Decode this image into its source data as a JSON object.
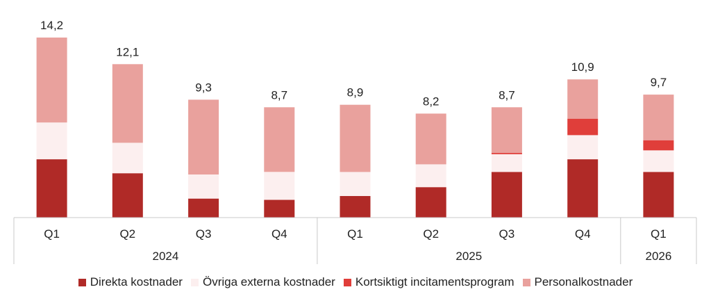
{
  "chart_data": {
    "type": "bar",
    "stacked": true,
    "categories": [
      "Q1",
      "Q2",
      "Q3",
      "Q4",
      "Q1",
      "Q2",
      "Q3",
      "Q4",
      "Q1"
    ],
    "groups": [
      {
        "label": "2024",
        "count": 4
      },
      {
        "label": "2025",
        "count": 4
      },
      {
        "label": "2026",
        "count": 1
      }
    ],
    "totals": [
      14.2,
      12.1,
      9.3,
      8.7,
      8.9,
      8.2,
      8.7,
      10.9,
      9.7
    ],
    "total_labels": [
      "14,2",
      "12,1",
      "9,3",
      "8,7",
      "8,9",
      "8,2",
      "8,7",
      "10,9",
      "9,7"
    ],
    "series": [
      {
        "name": "Direkta kostnader",
        "color": "#b02a27",
        "values": [
          4.6,
          3.5,
          1.5,
          1.4,
          1.7,
          2.4,
          3.6,
          4.6,
          3.6
        ]
      },
      {
        "name": "Övriga externa kostnader",
        "color": "#fcefef",
        "values": [
          2.9,
          2.4,
          1.9,
          2.2,
          1.9,
          1.8,
          1.4,
          1.9,
          1.7
        ]
      },
      {
        "name": "Kortsiktigt incitamentsprogram",
        "color": "#e03e3a",
        "values": [
          0,
          0,
          0,
          0,
          0,
          0,
          0.1,
          1.3,
          0.8
        ]
      },
      {
        "name": "Personalkostnader",
        "color": "#e9a19d",
        "values": [
          6.7,
          6.2,
          5.9,
          5.1,
          5.3,
          4.0,
          3.6,
          3.1,
          3.6
        ]
      }
    ],
    "ylim": [
      0,
      14.2
    ],
    "grid": false,
    "legend_position": "bottom"
  }
}
